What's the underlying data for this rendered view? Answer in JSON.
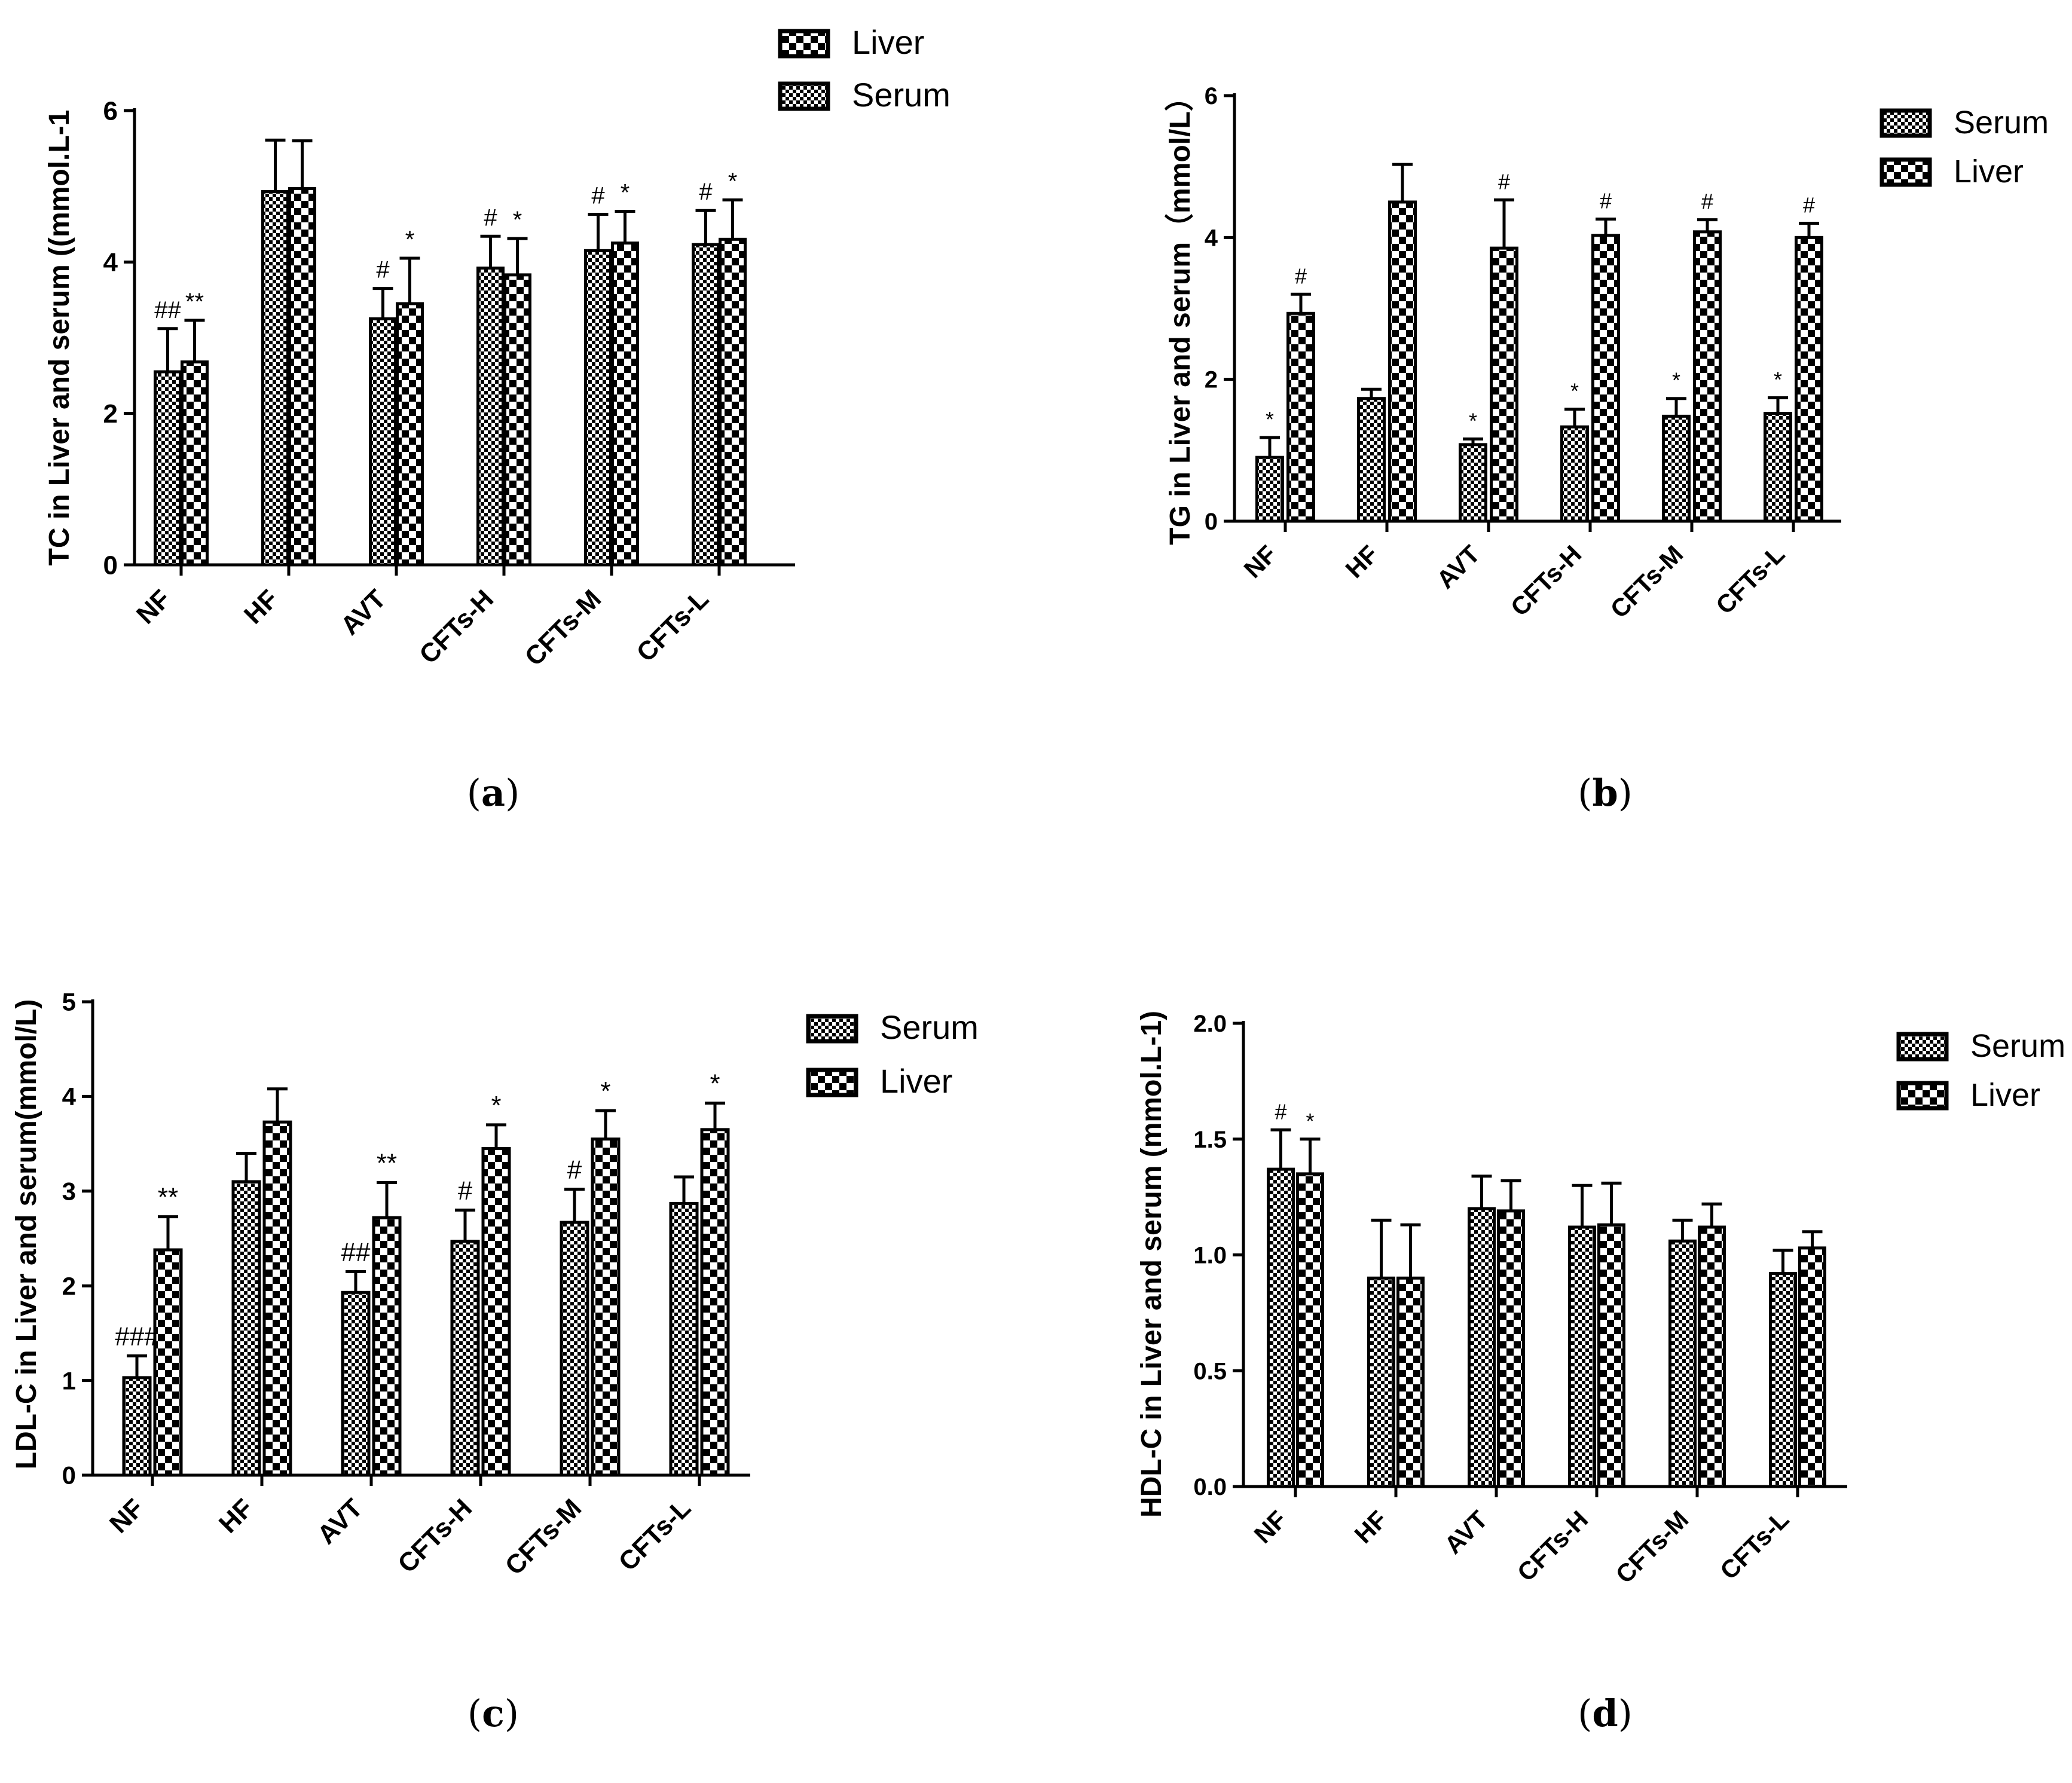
{
  "panels": [
    {
      "caption_open": "(",
      "caption_letter": "a",
      "caption_close": ")"
    },
    {
      "caption_open": "(",
      "caption_letter": "b",
      "caption_close": ")"
    },
    {
      "caption_open": "(",
      "caption_letter": "c",
      "caption_close": ")"
    },
    {
      "caption_open": "(",
      "caption_letter": "d",
      "caption_close": ")"
    }
  ],
  "colors": {
    "bars": "#000000",
    "serum_pattern": "fine-checker",
    "liver_pattern": "coarse-checker"
  },
  "chart_data": [
    {
      "type": "bar",
      "title": "",
      "xlabel": "",
      "ylabel": "TC in Liver and serum ((mmol.L-1",
      "ylim": [
        0,
        6
      ],
      "yticks": [
        "0",
        "2",
        "4",
        "6"
      ],
      "categories": [
        "NF",
        "HF",
        "AVT",
        "CFTs-H",
        "CFTs-M",
        "CFTs-L"
      ],
      "grid": false,
      "legend_position": "top-right",
      "legend_order": [
        "Liver",
        "Serum"
      ],
      "series": [
        {
          "name": "Serum",
          "pattern": "fine",
          "values": [
            2.55,
            4.93,
            3.25,
            3.92,
            4.15,
            4.23
          ],
          "errors": [
            0.57,
            0.68,
            0.4,
            0.42,
            0.48,
            0.45
          ],
          "annotations": [
            "##",
            "",
            "#",
            "#",
            "#",
            "#"
          ]
        },
        {
          "name": "Liver",
          "pattern": "coarse",
          "values": [
            2.68,
            4.97,
            3.45,
            3.83,
            4.25,
            4.3
          ],
          "errors": [
            0.55,
            0.63,
            0.6,
            0.48,
            0.42,
            0.52
          ],
          "annotations": [
            "**",
            "",
            "*",
            "*",
            "*",
            "*"
          ]
        }
      ]
    },
    {
      "type": "bar",
      "title": "",
      "xlabel": "",
      "ylabel": "TG in Liver and serum（mmol/L）",
      "ylim": [
        0,
        6
      ],
      "yticks": [
        "0",
        "2",
        "4",
        "6"
      ],
      "categories": [
        "NF",
        "HF",
        "AVT",
        "CFTs-H",
        "CFTs-M",
        "CFTs-L"
      ],
      "grid": false,
      "legend_position": "top-right",
      "legend_order": [
        "Serum",
        "Liver"
      ],
      "series": [
        {
          "name": "Serum",
          "pattern": "fine",
          "values": [
            0.9,
            1.73,
            1.08,
            1.33,
            1.48,
            1.52
          ],
          "errors": [
            0.28,
            0.13,
            0.08,
            0.25,
            0.25,
            0.22
          ],
          "annotations": [
            "*",
            "",
            "*",
            "*",
            "*",
            "*"
          ]
        },
        {
          "name": "Liver",
          "pattern": "coarse",
          "values": [
            2.93,
            4.5,
            3.85,
            4.03,
            4.08,
            4.0
          ],
          "errors": [
            0.27,
            0.53,
            0.68,
            0.23,
            0.17,
            0.2
          ],
          "annotations": [
            "#",
            "",
            "#",
            "#",
            "#",
            "#"
          ]
        }
      ]
    },
    {
      "type": "bar",
      "title": "",
      "xlabel": "",
      "ylabel": "LDL-C in Liver and serum(mmol/L)",
      "ylim": [
        0,
        5
      ],
      "yticks": [
        "0",
        "1",
        "2",
        "3",
        "4",
        "5"
      ],
      "categories": [
        "NF",
        "HF",
        "AVT",
        "CFTs-H",
        "CFTs-M",
        "CFTs-L"
      ],
      "grid": false,
      "legend_position": "top-right",
      "legend_order": [
        "Serum",
        "Liver"
      ],
      "series": [
        {
          "name": "Serum",
          "pattern": "fine",
          "values": [
            1.03,
            3.1,
            1.93,
            2.47,
            2.67,
            2.87
          ],
          "errors": [
            0.23,
            0.3,
            0.22,
            0.33,
            0.35,
            0.28
          ],
          "annotations": [
            "###",
            "",
            "##",
            "#",
            "#",
            ""
          ]
        },
        {
          "name": "Liver",
          "pattern": "coarse",
          "values": [
            2.38,
            3.73,
            2.72,
            3.45,
            3.55,
            3.65
          ],
          "errors": [
            0.35,
            0.35,
            0.37,
            0.25,
            0.3,
            0.28
          ],
          "annotations": [
            "**",
            "",
            "**",
            "*",
            "*",
            "*"
          ]
        }
      ]
    },
    {
      "type": "bar",
      "title": "",
      "xlabel": "",
      "ylabel": "HDL-C in Liver and serum (mmol.L-1)",
      "ylim": [
        0,
        2.0
      ],
      "yticks": [
        "0.0",
        "0.5",
        "1.0",
        "1.5",
        "2.0"
      ],
      "categories": [
        "NF",
        "HF",
        "AVT",
        "CFTs-H",
        "CFTs-M",
        "CFTs-L"
      ],
      "grid": false,
      "legend_position": "top-right",
      "legend_order": [
        "Serum",
        "Liver"
      ],
      "series": [
        {
          "name": "Serum",
          "pattern": "fine",
          "values": [
            1.37,
            0.9,
            1.2,
            1.12,
            1.06,
            0.92
          ],
          "errors": [
            0.17,
            0.25,
            0.14,
            0.18,
            0.09,
            0.1
          ],
          "annotations": [
            "#",
            "",
            "",
            "",
            "",
            ""
          ]
        },
        {
          "name": "Liver",
          "pattern": "coarse",
          "values": [
            1.35,
            0.9,
            1.19,
            1.13,
            1.12,
            1.03
          ],
          "errors": [
            0.15,
            0.23,
            0.13,
            0.18,
            0.1,
            0.07
          ],
          "annotations": [
            "*",
            "",
            "",
            "",
            "",
            ""
          ]
        }
      ]
    }
  ]
}
